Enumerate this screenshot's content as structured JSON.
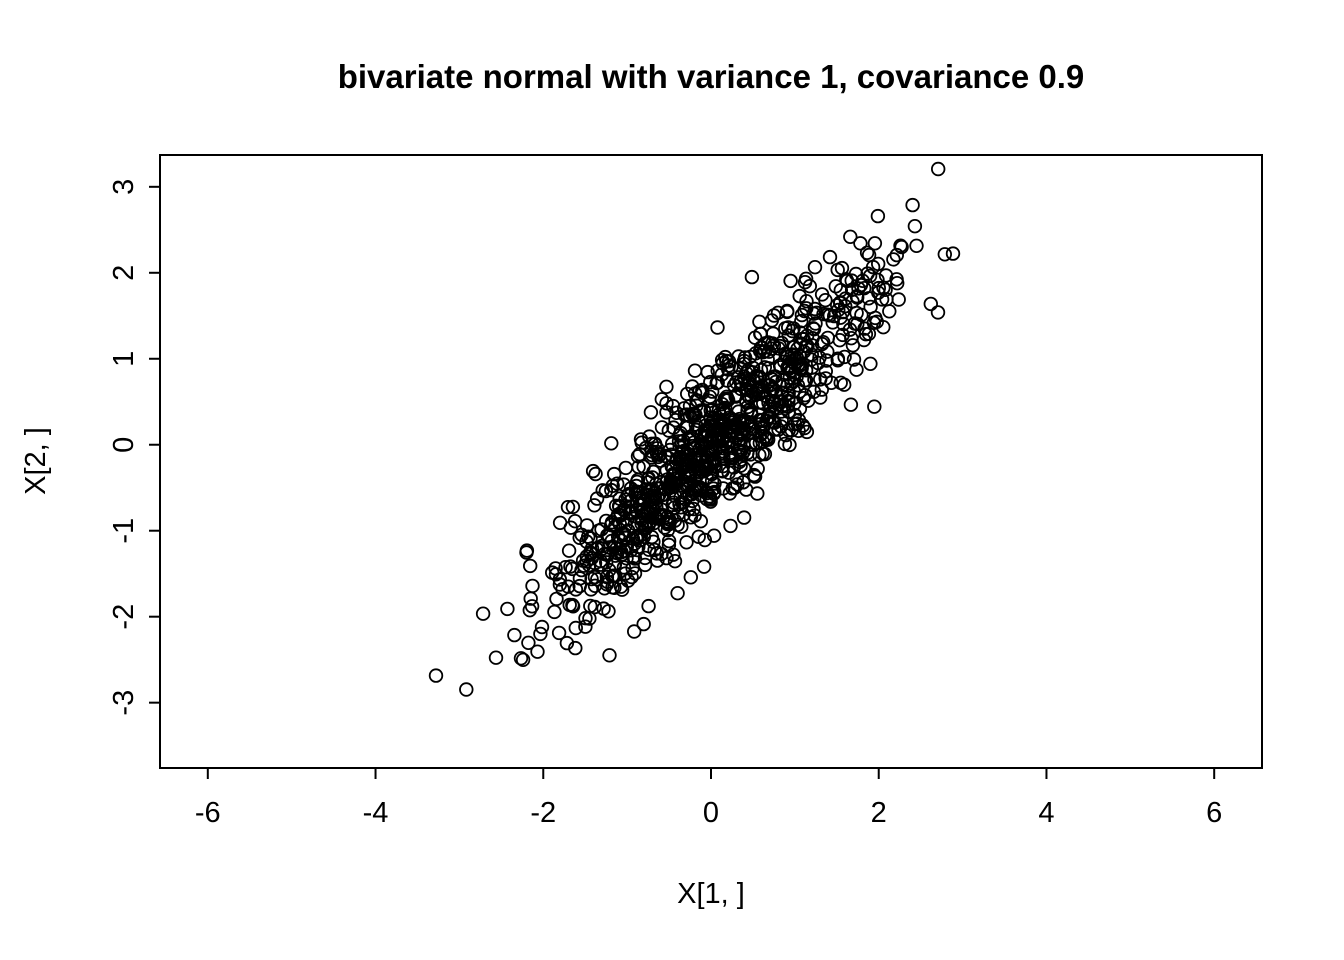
{
  "chart_data": {
    "type": "scatter",
    "title": "bivariate normal with variance 1, covariance 0.9",
    "xlabel": "X[1, ]",
    "ylabel": "X[2, ]",
    "x_ticks": [
      -6,
      -4,
      -2,
      0,
      2,
      4,
      6
    ],
    "y_ticks": [
      -3,
      -2,
      -1,
      0,
      1,
      2,
      3
    ],
    "xlim": [
      -6.57,
      6.57
    ],
    "ylim": [
      -3.76,
      3.37
    ],
    "n_points": 1000,
    "mean": [
      0,
      0
    ],
    "variance": 1,
    "covariance": 0.9,
    "correlation": 0.9,
    "seed": 42,
    "marker": "open-circle",
    "marker_color": "#000000",
    "background": "#ffffff",
    "grid": false,
    "legend": false,
    "x_range_of_points": [
      -3.4,
      3.3
    ],
    "y_range_of_points": [
      -3.4,
      3.2
    ]
  }
}
